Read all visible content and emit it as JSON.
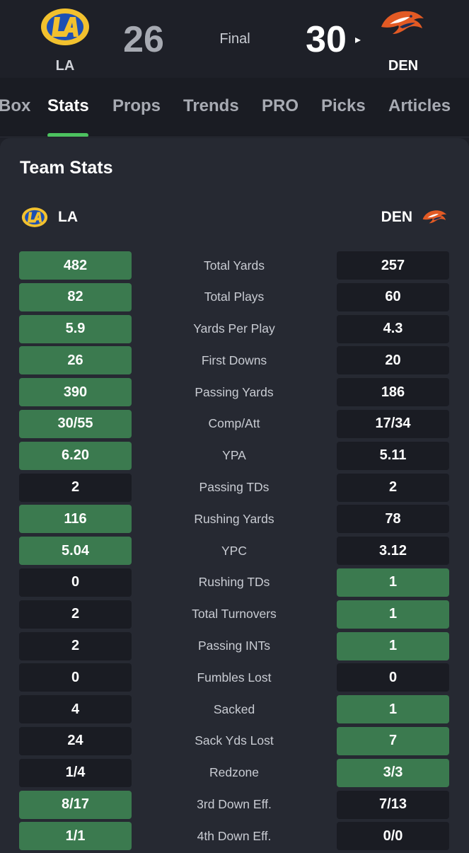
{
  "scoreboard": {
    "home": {
      "abbr": "LA",
      "score": "26"
    },
    "away": {
      "abbr": "DEN",
      "score": "30"
    },
    "status": "Final",
    "winner_marker": "▸"
  },
  "tabs": [
    {
      "label": "Box"
    },
    {
      "label": "Stats",
      "active": true
    },
    {
      "label": "Props"
    },
    {
      "label": "Trends"
    },
    {
      "label": "PRO"
    },
    {
      "label": "Picks"
    },
    {
      "label": "Articles"
    }
  ],
  "team_stats": {
    "title": "Team Stats",
    "home_abbr": "LA",
    "away_abbr": "DEN",
    "rows": [
      {
        "label": "Total Yards",
        "home": "482",
        "away": "257",
        "leader": "home"
      },
      {
        "label": "Total Plays",
        "home": "82",
        "away": "60",
        "leader": "home"
      },
      {
        "label": "Yards Per Play",
        "home": "5.9",
        "away": "4.3",
        "leader": "home"
      },
      {
        "label": "First Downs",
        "home": "26",
        "away": "20",
        "leader": "home"
      },
      {
        "label": "Passing Yards",
        "home": "390",
        "away": "186",
        "leader": "home"
      },
      {
        "label": "Comp/Att",
        "home": "30/55",
        "away": "17/34",
        "leader": "home"
      },
      {
        "label": "YPA",
        "home": "6.20",
        "away": "5.11",
        "leader": "home"
      },
      {
        "label": "Passing TDs",
        "home": "2",
        "away": "2",
        "leader": "none"
      },
      {
        "label": "Rushing Yards",
        "home": "116",
        "away": "78",
        "leader": "home"
      },
      {
        "label": "YPC",
        "home": "5.04",
        "away": "3.12",
        "leader": "home"
      },
      {
        "label": "Rushing TDs",
        "home": "0",
        "away": "1",
        "leader": "away"
      },
      {
        "label": "Total Turnovers",
        "home": "2",
        "away": "1",
        "leader": "away"
      },
      {
        "label": "Passing INTs",
        "home": "2",
        "away": "1",
        "leader": "away"
      },
      {
        "label": "Fumbles Lost",
        "home": "0",
        "away": "0",
        "leader": "none"
      },
      {
        "label": "Sacked",
        "home": "4",
        "away": "1",
        "leader": "away"
      },
      {
        "label": "Sack Yds Lost",
        "home": "24",
        "away": "7",
        "leader": "away"
      },
      {
        "label": "Redzone",
        "home": "1/4",
        "away": "3/3",
        "leader": "away"
      },
      {
        "label": "3rd Down Eff.",
        "home": "8/17",
        "away": "7/13",
        "leader": "home"
      },
      {
        "label": "4th Down Eff.",
        "home": "1/1",
        "away": "0/0",
        "leader": "home"
      }
    ]
  },
  "colors": {
    "background": "#1e2028",
    "card": "#262932",
    "leader_cell": "#3b7a4f",
    "neutral_cell": "#1a1c23",
    "active_tab_indicator": "#4cc25f",
    "rams_gold": "#f2c12e",
    "rams_blue": "#1d4fb3",
    "broncos_orange": "#e25a24"
  },
  "icons": {
    "home_logo": "rams-logo-icon",
    "away_logo": "broncos-logo-icon"
  }
}
